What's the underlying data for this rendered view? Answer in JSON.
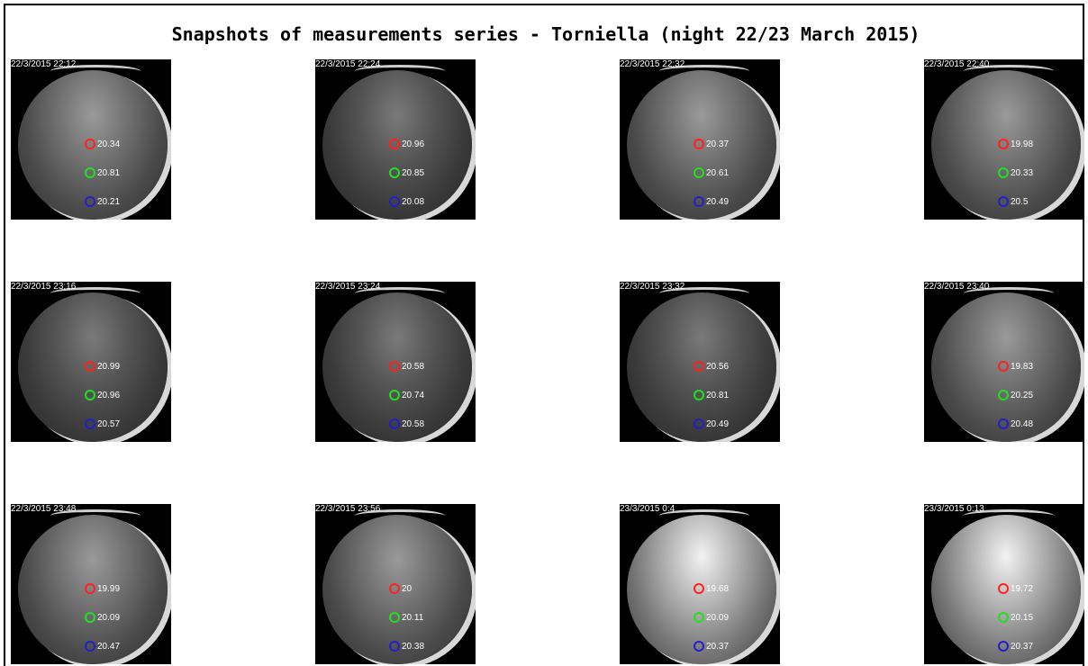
{
  "title": "Snapshots of measurements series - Torniella (night 22/23 March 2015)",
  "colors": {
    "red": "#ff2020",
    "green": "#20e020",
    "blue": "#2020c8"
  },
  "snapshots": [
    {
      "timestamp": "22/3/2015 22:12",
      "red": "20.34",
      "green": "20.81",
      "blue": "20.21",
      "sky": "mid"
    },
    {
      "timestamp": "22/3/2015 22:24",
      "red": "20.96",
      "green": "20.85",
      "blue": "20.08",
      "sky": "dark"
    },
    {
      "timestamp": "22/3/2015 22:32",
      "red": "20.37",
      "green": "20.61",
      "blue": "20.49",
      "sky": "mid"
    },
    {
      "timestamp": "22/3/2015 22:40",
      "red": "19.98",
      "green": "20.33",
      "blue": "20.5",
      "sky": "mid"
    },
    {
      "timestamp": "22/3/2015 23:16",
      "red": "20.99",
      "green": "20.96",
      "blue": "20.57",
      "sky": "dark"
    },
    {
      "timestamp": "22/3/2015 23:24",
      "red": "20.58",
      "green": "20.74",
      "blue": "20.58",
      "sky": "dark"
    },
    {
      "timestamp": "22/3/2015 23:32",
      "red": "20.56",
      "green": "20.81",
      "blue": "20.49",
      "sky": "dark"
    },
    {
      "timestamp": "22/3/2015 23:40",
      "red": "19.83",
      "green": "20.25",
      "blue": "20.48",
      "sky": "mid"
    },
    {
      "timestamp": "22/3/2015 23:48",
      "red": "19.99",
      "green": "20.09",
      "blue": "20.47",
      "sky": "mid"
    },
    {
      "timestamp": "22/3/2015 23:56",
      "red": "20",
      "green": "20.11",
      "blue": "20.38",
      "sky": "mid"
    },
    {
      "timestamp": "23/3/2015 0:4",
      "red": "19.68",
      "green": "20.09",
      "blue": "20.37",
      "sky": "bright"
    },
    {
      "timestamp": "23/3/2015 0:13",
      "red": "19.72",
      "green": "20.15",
      "blue": "20.37",
      "sky": "bright"
    }
  ]
}
